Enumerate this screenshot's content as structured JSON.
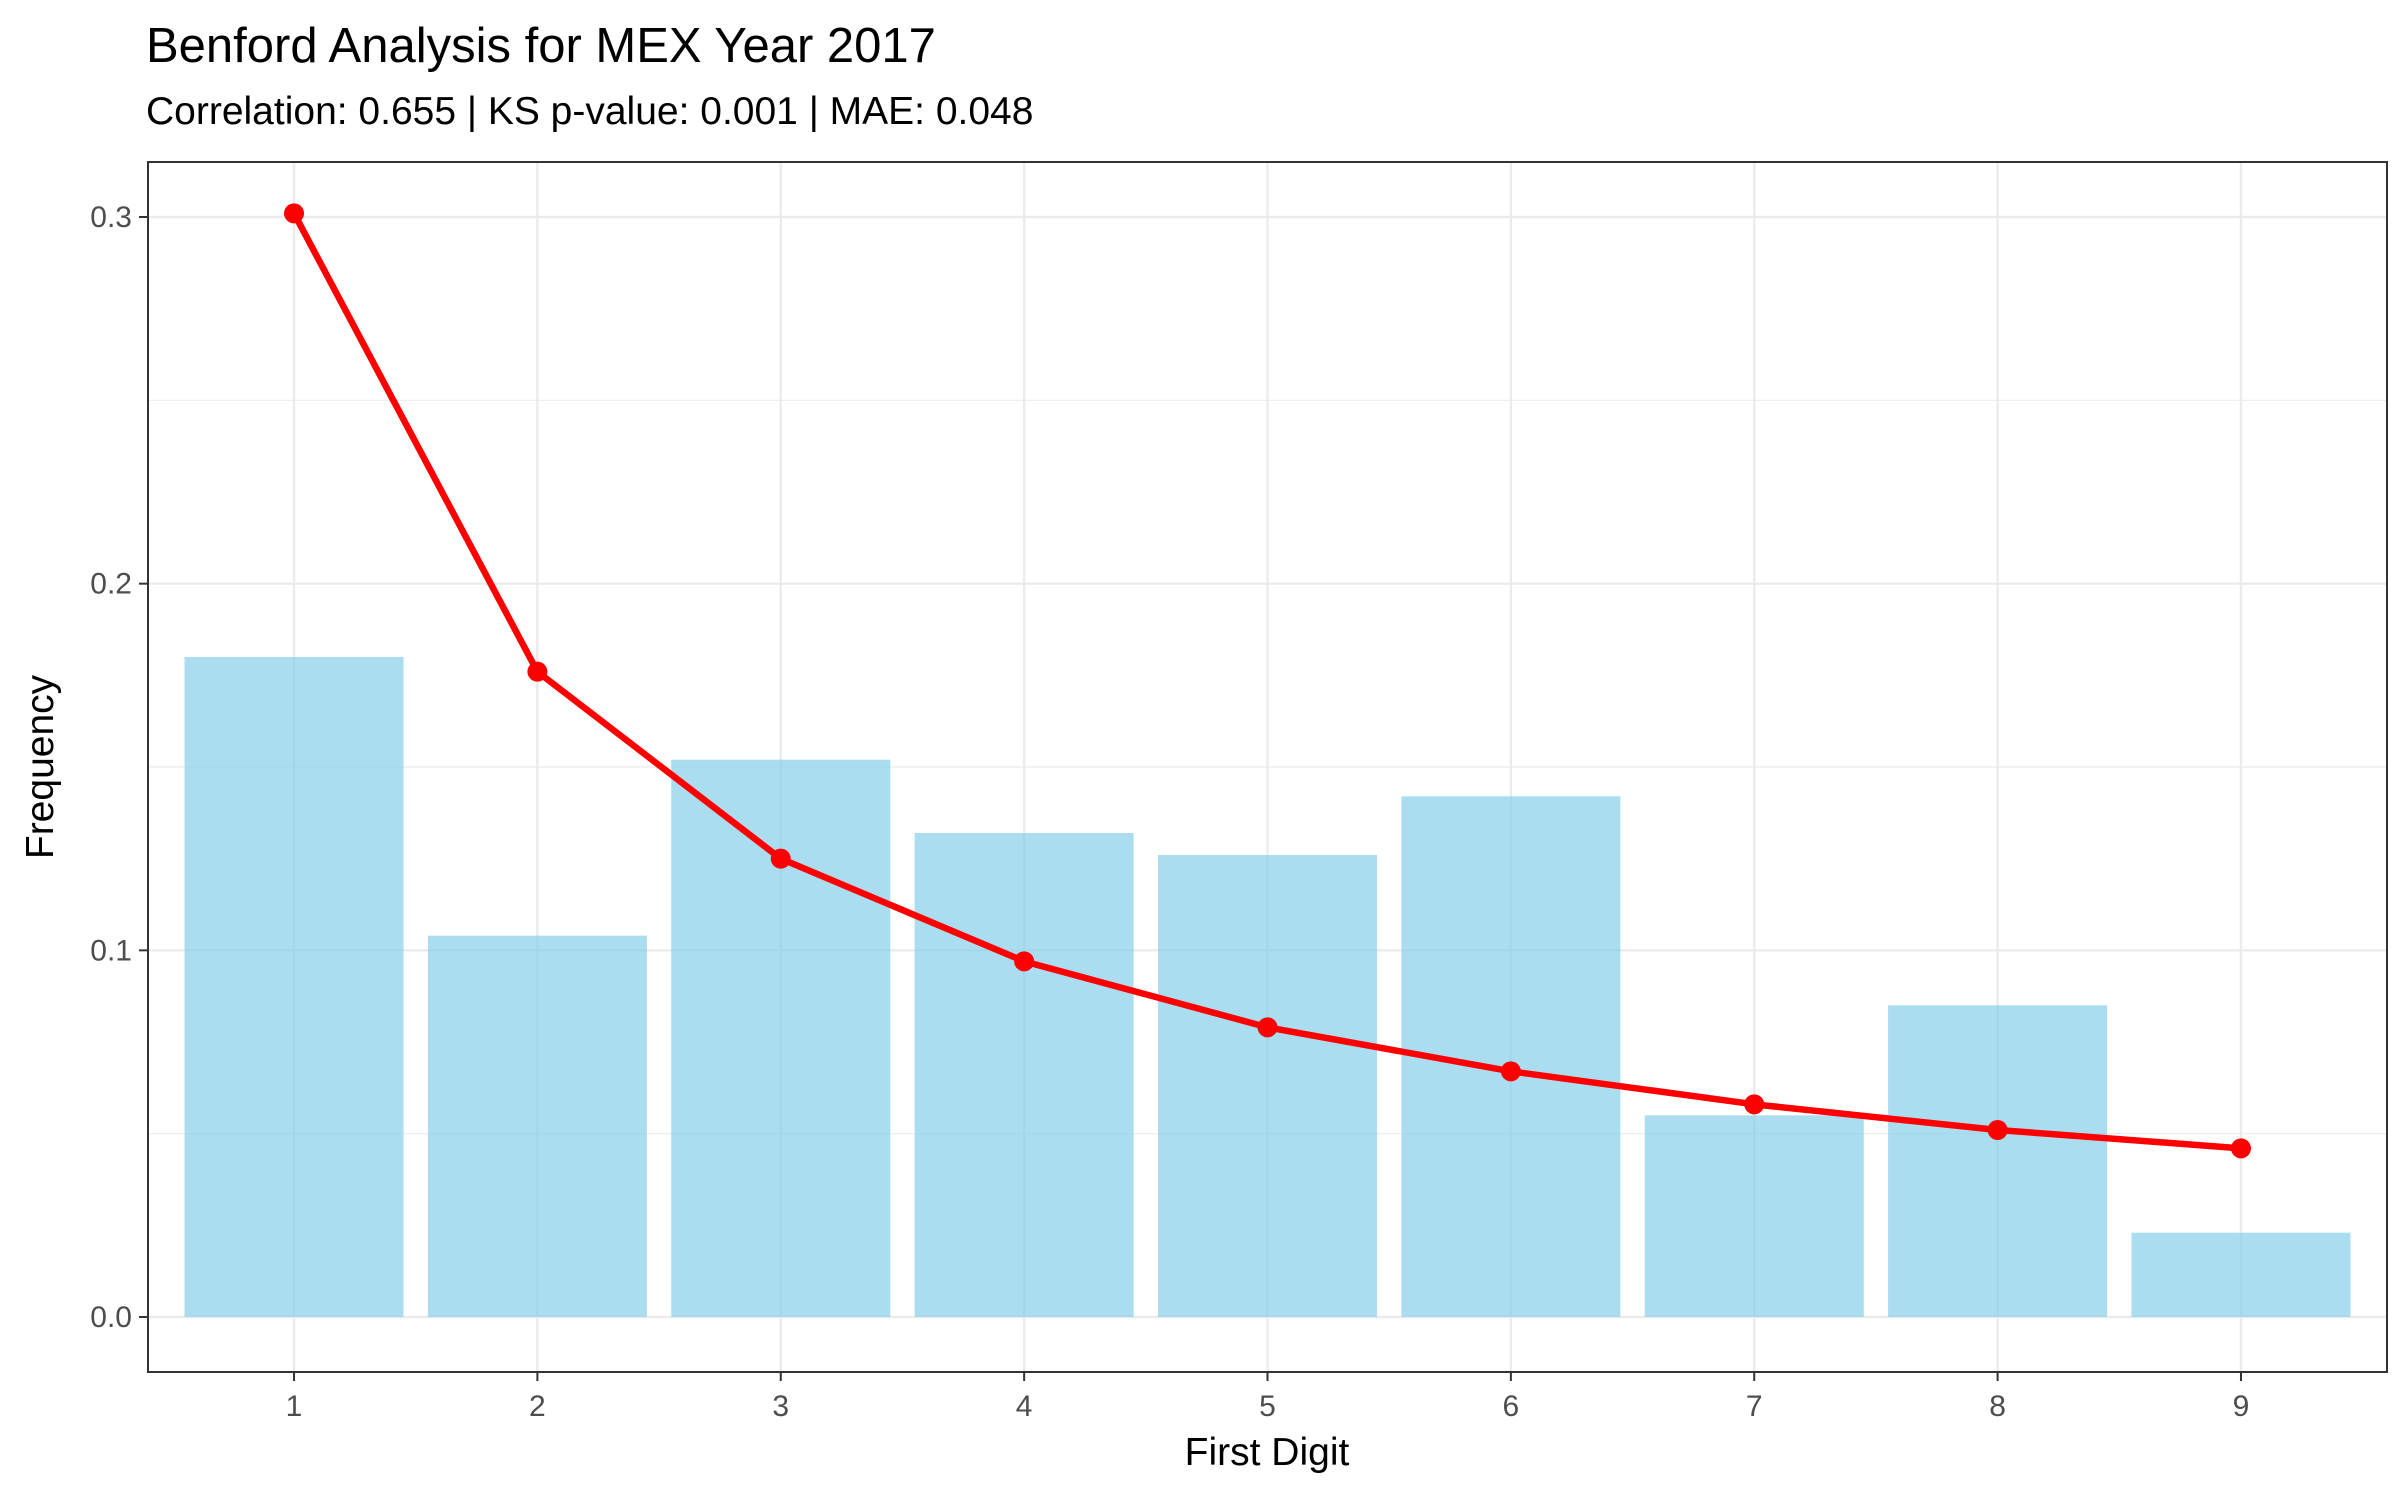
{
  "chart_data": {
    "type": "bar",
    "title": "Benford Analysis for MEX Year 2017",
    "subtitle": "Correlation: 0.655 | KS p-value: 0.001 | MAE: 0.048",
    "xlabel": "First Digit",
    "ylabel": "Frequency",
    "categories": [
      "1",
      "2",
      "3",
      "4",
      "5",
      "6",
      "7",
      "8",
      "9"
    ],
    "values": [
      0.18,
      0.104,
      0.152,
      0.132,
      0.126,
      0.142,
      0.055,
      0.085,
      0.023
    ],
    "series": [
      {
        "type": "bar",
        "values": [
          0.18,
          0.104,
          0.152,
          0.132,
          0.126,
          0.142,
          0.055,
          0.085,
          0.023
        ],
        "color": "#87CEEB"
      },
      {
        "type": "line",
        "values": [
          0.301,
          0.176,
          0.125,
          0.097,
          0.079,
          0.067,
          0.058,
          0.051,
          0.046
        ],
        "color": "#FF0000"
      }
    ],
    "yticks": [
      "0.0",
      "0.1",
      "0.2",
      "0.3"
    ],
    "ylim": [
      -0.015,
      0.315
    ],
    "grid": true,
    "legend": "none"
  }
}
